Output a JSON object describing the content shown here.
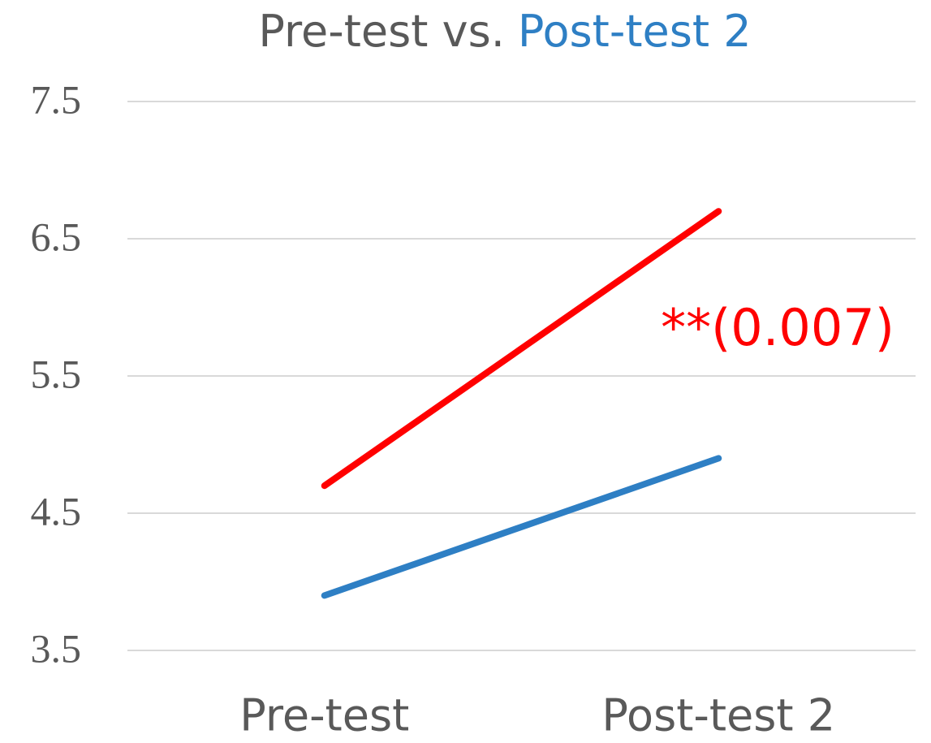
{
  "chart_data": {
    "type": "line",
    "title_parts": [
      {
        "text": "Pre-test vs.",
        "color": "#595959"
      },
      {
        "text": "Post-test 2",
        "color": "#2e7fc4"
      }
    ],
    "categories": [
      "Pre-test",
      "Post-test 2"
    ],
    "series": [
      {
        "color": "#ff0000",
        "values": [
          4.7,
          6.7
        ]
      },
      {
        "color": "#2e7fc4",
        "values": [
          3.9,
          4.9
        ]
      }
    ],
    "annotation": {
      "text": "**(0.007)",
      "color": "#ff0000"
    },
    "ylim": [
      3.5,
      7.5
    ],
    "yticks": [
      3.5,
      4.5,
      5.5,
      6.5,
      7.5
    ],
    "grid": true
  }
}
